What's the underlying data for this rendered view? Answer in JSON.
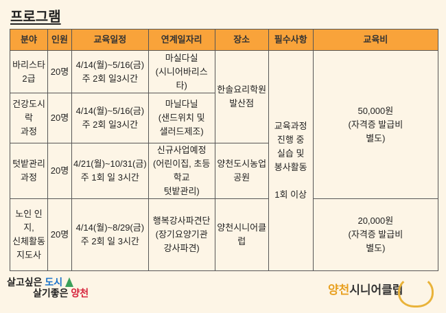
{
  "title": "프로그램",
  "headers": [
    "분야",
    "인원",
    "교육일정",
    "연계일자리",
    "장소",
    "필수사항",
    "교육비"
  ],
  "rows": [
    {
      "field": "바리스타\n2급",
      "people": "20명",
      "schedule": "4/14(월)~5/16(금)\n주 2회 일3시간",
      "job": "마실다실\n(시니어바리스타)"
    },
    {
      "field": "건강도시락\n과정",
      "people": "20명",
      "schedule": "4/14(월)~5/16(금)\n주 2회 일3시간",
      "job": "마닐다닐\n(샌드위치 및\n샐러드제조)"
    },
    {
      "field": "텃밭관리\n과정",
      "people": "20명",
      "schedule": "4/21(월)~10/31(금)\n주 1회 일 3시간",
      "job": "신규사업예정\n(어린이집, 초등학교\n텃밭관리)"
    },
    {
      "field": "노인 인지,\n신체활동\n지도사",
      "people": "20명",
      "schedule": "4/14(월)~8/29(금)\n주 2회 일 3시간",
      "job": "행복강사파견단\n(장기요양기관\n강사파견)"
    }
  ],
  "places": [
    "한솔요리학원\n발산점",
    "양천도시농업\n공원",
    "양천시니어클럽"
  ],
  "required": "교육과정\n진행 중\n실습 및\n봉사활동\n\n1회 이상",
  "fees": [
    "50,000원\n(자격증 발급비\n별도)",
    "20,000원\n(자격증 발급비\n별도)"
  ],
  "footer": {
    "left_line1a": "살고싶은 ",
    "left_line1b": "도시",
    "left_line2a": "살기좋은 ",
    "left_line2b": "양천",
    "right_a": "양천",
    "right_b": "시니어클럽"
  },
  "colors": {
    "header": "#f9a33a",
    "background": "#fdf5e6"
  }
}
